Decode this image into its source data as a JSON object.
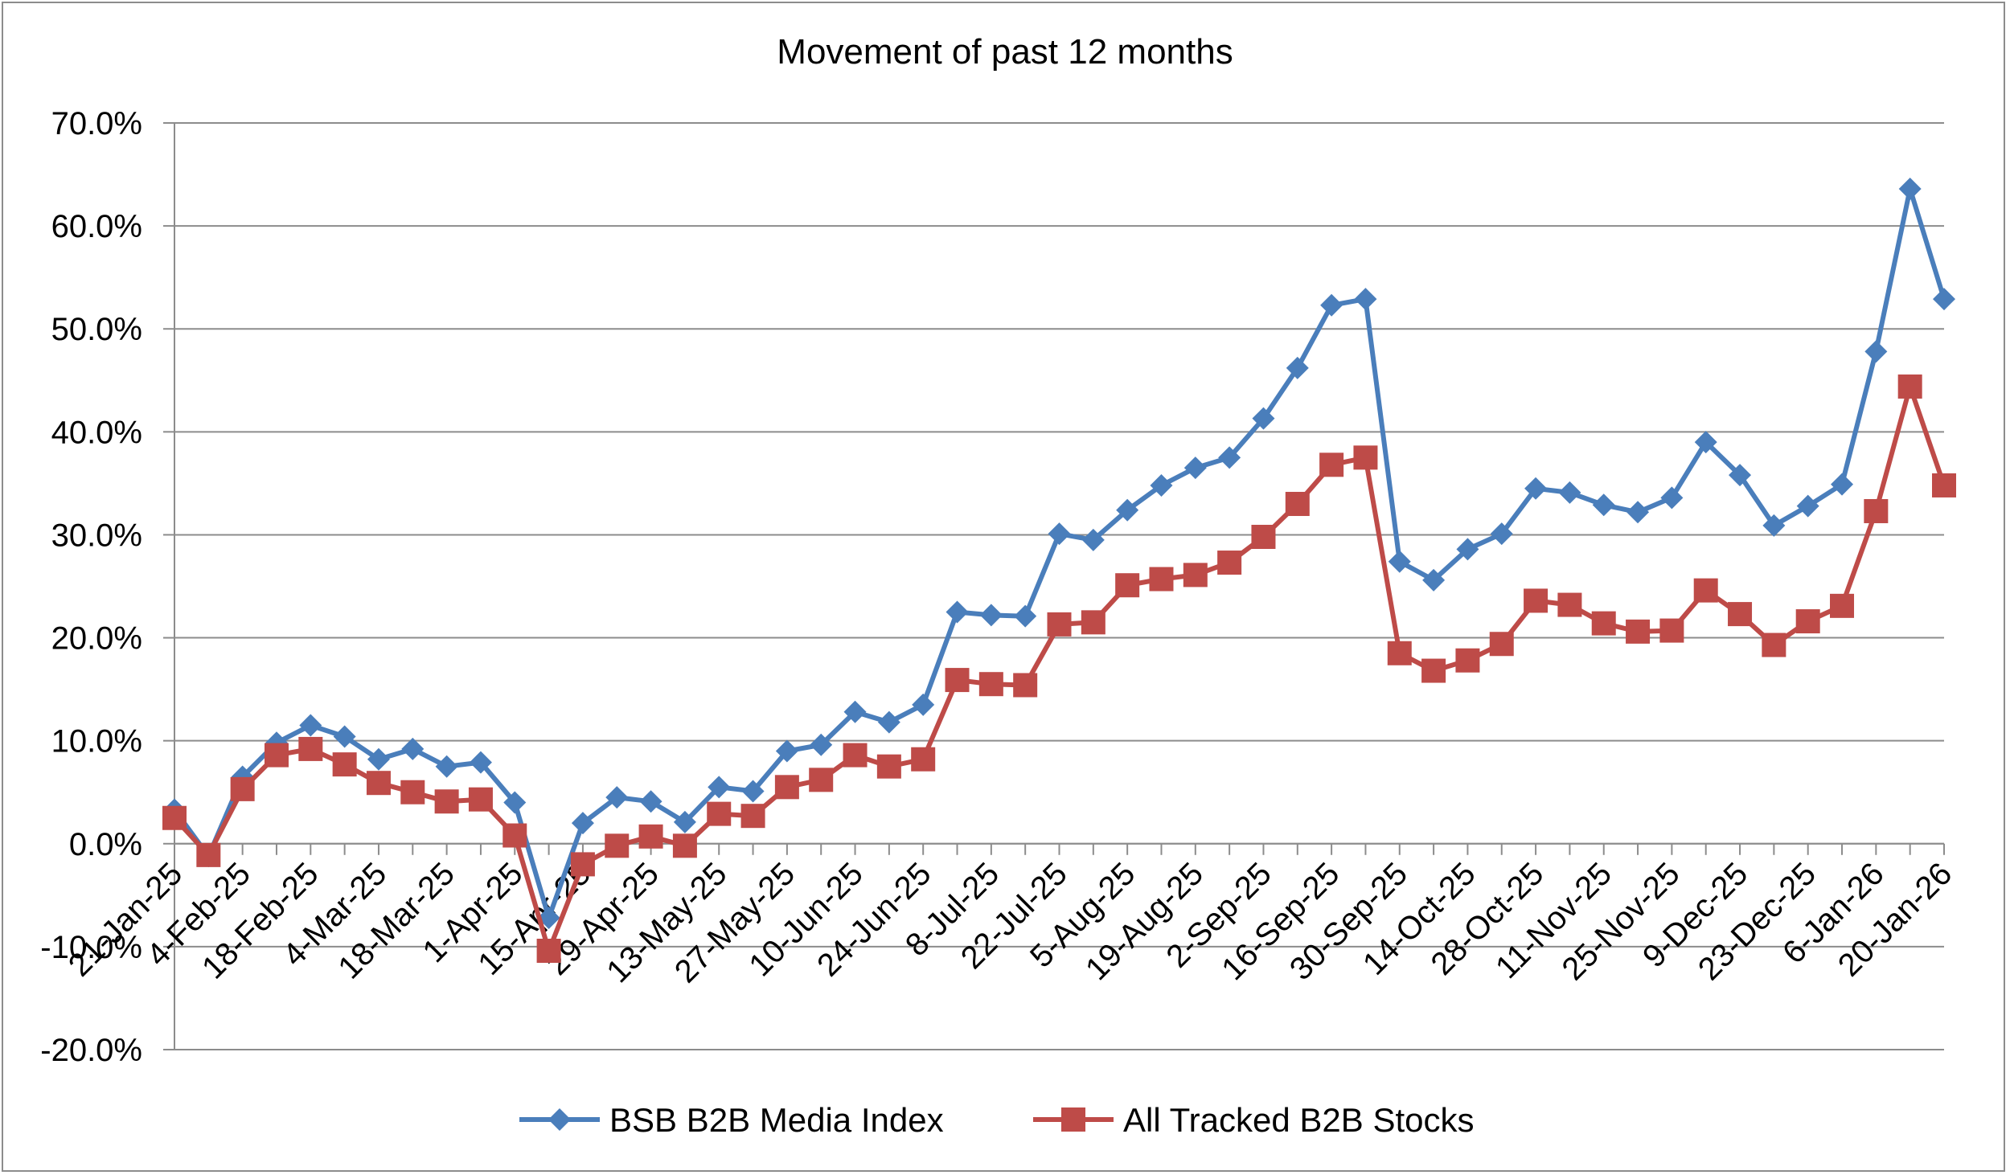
{
  "chart_data": {
    "type": "line",
    "title": "Movement of past 12 months",
    "xlabel": "",
    "ylabel": "",
    "ylim": [
      -0.2,
      0.7
    ],
    "y_tick_values": [
      -0.2,
      -0.1,
      0.0,
      0.1,
      0.2,
      0.3,
      0.4,
      0.5,
      0.6,
      0.7
    ],
    "y_tick_labels": [
      "-20.0%",
      "-10.0%",
      "0.0%",
      "10.0%",
      "20.0%",
      "30.0%",
      "40.0%",
      "50.0%",
      "60.0%",
      "70.0%"
    ],
    "grid": true,
    "legend_position": "bottom",
    "x": [
      "21-Jan-25",
      "28-Jan-25",
      "4-Feb-25",
      "11-Feb-25",
      "18-Feb-25",
      "25-Feb-25",
      "4-Mar-25",
      "11-Mar-25",
      "18-Mar-25",
      "25-Mar-25",
      "1-Apr-25",
      "8-Apr-25",
      "15-Apr-25",
      "22-Apr-25",
      "29-Apr-25",
      "6-May-25",
      "13-May-25",
      "20-May-25",
      "27-May-25",
      "3-Jun-25",
      "10-Jun-25",
      "17-Jun-25",
      "24-Jun-25",
      "1-Jul-25",
      "8-Jul-25",
      "15-Jul-25",
      "22-Jul-25",
      "29-Jul-25",
      "5-Aug-25",
      "12-Aug-25",
      "19-Aug-25",
      "26-Aug-25",
      "2-Sep-25",
      "9-Sep-25",
      "16-Sep-25",
      "23-Sep-25",
      "30-Sep-25",
      "7-Oct-25",
      "14-Oct-25",
      "21-Oct-25",
      "28-Oct-25",
      "4-Nov-25",
      "11-Nov-25",
      "18-Nov-25",
      "25-Nov-25",
      "2-Dec-25",
      "9-Dec-25",
      "16-Dec-25",
      "23-Dec-25",
      "30-Dec-25",
      "6-Jan-26",
      "13-Jan-26",
      "20-Jan-26"
    ],
    "x_tick_labels": [
      "21-Jan-25",
      "4-Feb-25",
      "18-Feb-25",
      "4-Mar-25",
      "18-Mar-25",
      "1-Apr-25",
      "15-Apr-25",
      "29-Apr-25",
      "13-May-25",
      "27-May-25",
      "10-Jun-25",
      "24-Jun-25",
      "8-Jul-25",
      "22-Jul-25",
      "5-Aug-25",
      "19-Aug-25",
      "2-Sep-25",
      "16-Sep-25",
      "30-Sep-25",
      "14-Oct-25",
      "28-Oct-25",
      "11-Nov-25",
      "25-Nov-25",
      "9-Dec-25",
      "23-Dec-25",
      "6-Jan-26",
      "20-Jan-26"
    ],
    "series": [
      {
        "name": "BSB B2B Media Index",
        "color": "#4a7ebb",
        "marker": "diamond",
        "values": [
          0.033,
          -0.012,
          0.065,
          0.098,
          0.115,
          0.104,
          0.082,
          0.092,
          0.075,
          0.079,
          0.04,
          -0.072,
          0.02,
          0.045,
          0.041,
          0.021,
          0.055,
          0.051,
          0.09,
          0.096,
          0.128,
          0.118,
          0.135,
          0.225,
          0.222,
          0.221,
          0.301,
          0.295,
          0.324,
          0.348,
          0.365,
          0.375,
          0.413,
          0.462,
          0.523,
          0.529,
          0.274,
          0.256,
          0.286,
          0.301,
          0.345,
          0.341,
          0.329,
          0.322,
          0.336,
          0.39,
          0.358,
          0.309,
          0.328,
          0.349,
          0.478,
          0.636,
          0.529
        ]
      },
      {
        "name": "All Tracked B2B Stocks",
        "color": "#be4b48",
        "marker": "square",
        "values": [
          0.025,
          -0.011,
          0.053,
          0.086,
          0.092,
          0.077,
          0.059,
          0.05,
          0.041,
          0.043,
          0.008,
          -0.104,
          -0.02,
          -0.002,
          0.007,
          -0.002,
          0.029,
          0.027,
          0.055,
          0.062,
          0.086,
          0.075,
          0.082,
          0.159,
          0.155,
          0.154,
          0.213,
          0.215,
          0.251,
          0.257,
          0.261,
          0.273,
          0.298,
          0.33,
          0.368,
          0.375,
          0.185,
          0.168,
          0.178,
          0.194,
          0.236,
          0.232,
          0.214,
          0.206,
          0.207,
          0.246,
          0.223,
          0.193,
          0.216,
          0.231,
          0.323,
          0.444,
          0.348
        ]
      }
    ]
  }
}
